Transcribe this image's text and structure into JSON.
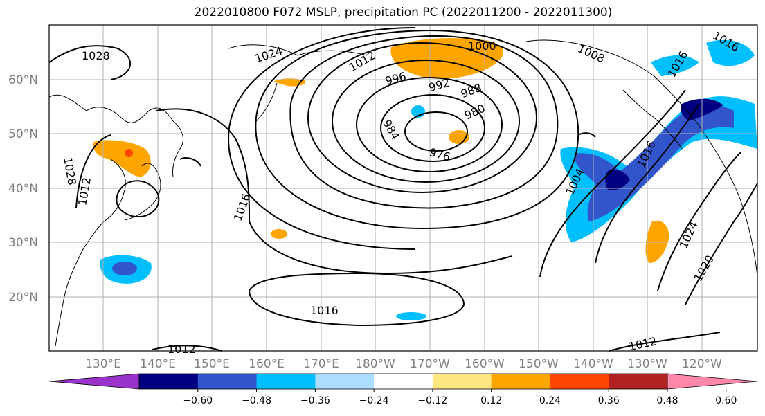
{
  "title": "2022010800 F072 MSLP, precipitation PC (2022011200 - 2022011300)",
  "lat_labels": [
    "60°N",
    "50°N",
    "40°N",
    "30°N",
    "20°N"
  ],
  "lon_labels": [
    "130°E",
    "140°E",
    "150°E",
    "160°E",
    "170°E",
    "180°W",
    "170°W",
    "160°W",
    "150°W",
    "140°W",
    "130°W",
    "120°W"
  ],
  "colorbar": {
    "ticks": [
      "−0.60",
      "−0.48",
      "−0.36",
      "−0.24",
      "−0.12",
      "0.12",
      "0.24",
      "0.36",
      "0.48",
      "0.60"
    ],
    "colors": [
      "#9933cc",
      "#000080",
      "#3355cc",
      "#00bfff",
      "#aaddff",
      "#ffffff",
      "#ffe680",
      "#ffa500",
      "#ff4500",
      "#b22222",
      "#ff88aa"
    ]
  },
  "isobar_labels": [
    "1028",
    "1024",
    "1012",
    "1000",
    "996",
    "992",
    "988",
    "980",
    "984",
    "976",
    "1008",
    "1016",
    "1016",
    "1028",
    "1012",
    "1004",
    "1016",
    "1024",
    "1020",
    "1012",
    "1016",
    "1012",
    "1016"
  ]
}
